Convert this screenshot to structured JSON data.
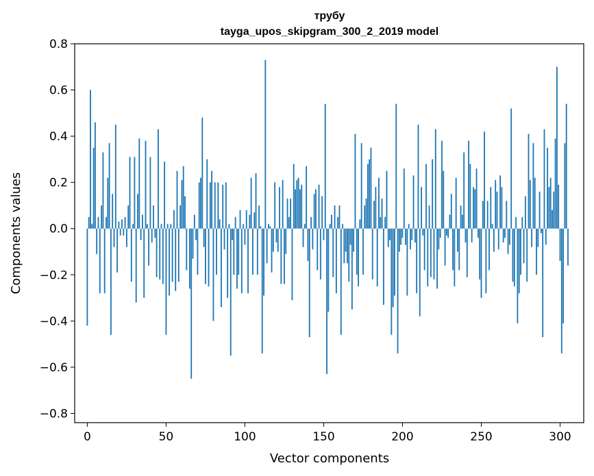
{
  "chart_data": {
    "type": "bar",
    "title": "трубу",
    "subtitle": "tayga_upos_skipgram_300_2_2019 model",
    "xlabel": "Vector components",
    "ylabel": "Components values",
    "xlim": [
      -8,
      315
    ],
    "ylim": [
      -0.84,
      0.8
    ],
    "xticks": [
      0,
      50,
      100,
      150,
      200,
      250,
      300
    ],
    "yticks": [
      -0.8,
      -0.6,
      -0.4,
      -0.2,
      0.0,
      0.2,
      0.4,
      0.6,
      0.8
    ],
    "ytick_labels": [
      "−0.8",
      "−0.6",
      "−0.4",
      "−0.2",
      "0.0",
      "0.2",
      "0.4",
      "0.6",
      "0.8"
    ],
    "xtick_labels": [
      "0",
      "50",
      "100",
      "150",
      "200",
      "250",
      "300"
    ],
    "bar_color": "#1f77b4",
    "grid": false,
    "legend": "none",
    "values": [
      -0.42,
      0.05,
      0.6,
      0.02,
      0.35,
      0.46,
      -0.11,
      0.05,
      -0.28,
      0.1,
      0.33,
      -0.28,
      0.05,
      0.22,
      0.37,
      -0.46,
      0.15,
      -0.08,
      0.45,
      -0.19,
      0.03,
      -0.03,
      0.04,
      -0.03,
      0.05,
      -0.08,
      0.1,
      0.31,
      -0.23,
      0.02,
      0.31,
      -0.32,
      0.15,
      0.39,
      -0.05,
      0.06,
      -0.3,
      0.38,
      0.02,
      -0.16,
      0.31,
      -0.06,
      0.1,
      -0.04,
      -0.21,
      0.43,
      -0.22,
      0.02,
      -0.24,
      0.29,
      -0.46,
      0.02,
      -0.29,
      0.02,
      -0.23,
      0.08,
      -0.27,
      0.25,
      -0.23,
      0.1,
      0.21,
      0.27,
      0.14,
      -0.18,
      0.0,
      -0.26,
      -0.65,
      -0.13,
      0.06,
      -0.05,
      -0.2,
      0.2,
      0.22,
      0.48,
      -0.08,
      -0.24,
      0.3,
      -0.25,
      0.2,
      0.25,
      -0.4,
      0.2,
      -0.2,
      0.2,
      0.04,
      -0.34,
      0.19,
      -0.09,
      0.2,
      -0.3,
      0.02,
      -0.55,
      -0.05,
      -0.2,
      0.05,
      -0.26,
      -0.2,
      0.08,
      -0.28,
      0.02,
      -0.07,
      0.08,
      -0.28,
      0.06,
      0.22,
      -0.2,
      0.07,
      0.24,
      -0.2,
      0.1,
      0.01,
      -0.54,
      -0.29,
      0.73,
      -0.15,
      0.02,
      0.01,
      -0.19,
      -0.1,
      0.2,
      -0.06,
      -0.1,
      0.18,
      -0.24,
      0.21,
      -0.24,
      -0.11,
      0.13,
      0.05,
      0.13,
      -0.31,
      0.28,
      0.17,
      0.21,
      0.22,
      0.17,
      0.19,
      -0.08,
      0.02,
      0.27,
      -0.14,
      -0.47,
      0.05,
      -0.09,
      0.15,
      0.17,
      -0.18,
      0.19,
      -0.22,
      0.14,
      -0.05,
      0.54,
      -0.63,
      -0.36,
      0.02,
      0.06,
      -0.21,
      0.1,
      -0.28,
      0.05,
      0.1,
      -0.46,
      0.02,
      -0.15,
      -0.1,
      -0.15,
      -0.23,
      -0.07,
      -0.35,
      -0.1,
      0.41,
      -0.2,
      -0.25,
      0.04,
      0.37,
      -0.2,
      0.1,
      0.13,
      0.28,
      0.3,
      0.35,
      -0.22,
      0.12,
      0.18,
      -0.25,
      0.22,
      0.05,
      0.13,
      -0.33,
      0.05,
      0.25,
      -0.08,
      -0.05,
      -0.46,
      -0.34,
      -0.29,
      0.54,
      -0.54,
      -0.1,
      -0.07,
      -0.04,
      0.26,
      -0.07,
      -0.29,
      0.02,
      -0.09,
      -0.05,
      0.23,
      -0.06,
      -0.28,
      0.45,
      -0.38,
      0.18,
      -0.03,
      -0.18,
      0.28,
      -0.25,
      0.1,
      -0.21,
      0.3,
      -0.22,
      0.43,
      -0.26,
      -0.09,
      -0.04,
      0.38,
      0.25,
      -0.16,
      -0.03,
      -0.04,
      0.06,
      0.15,
      -0.18,
      -0.25,
      0.22,
      -0.1,
      -0.18,
      0.1,
      0.06,
      0.33,
      -0.06,
      -0.21,
      0.38,
      0.28,
      -0.06,
      0.18,
      0.17,
      0.26,
      -0.04,
      -0.22,
      -0.3,
      0.12,
      0.42,
      -0.28,
      0.12,
      -0.18,
      0.18,
      0.02,
      -0.1,
      0.21,
      0.16,
      -0.09,
      0.23,
      0.18,
      -0.06,
      -0.04,
      0.12,
      -0.11,
      -0.07,
      0.52,
      -0.23,
      -0.25,
      0.05,
      -0.41,
      -0.28,
      -0.2,
      0.05,
      -0.15,
      0.14,
      -0.23,
      0.41,
      0.21,
      -0.08,
      0.37,
      0.22,
      -0.2,
      -0.08,
      0.16,
      -0.02,
      -0.47,
      0.43,
      -0.07,
      0.35,
      0.18,
      0.22,
      0.08,
      0.16,
      0.39,
      0.7,
      0.19,
      -0.14,
      -0.54,
      -0.41,
      0.37,
      0.54,
      -0.16
    ]
  }
}
